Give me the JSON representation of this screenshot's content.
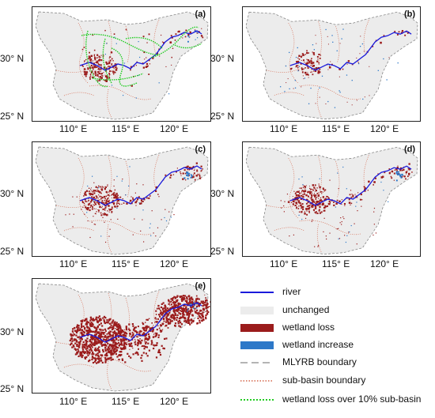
{
  "panels": [
    {
      "label": "(a)"
    },
    {
      "label": "(b)"
    },
    {
      "label": "(c)"
    },
    {
      "label": "(d)"
    },
    {
      "label": "(e)"
    }
  ],
  "axes": {
    "y_ticks": [
      "30° N",
      "25° N"
    ],
    "x_ticks": [
      "110° E",
      "115° E",
      "120° E"
    ]
  },
  "legend": {
    "items": [
      {
        "key": "river",
        "label": "river"
      },
      {
        "key": "unchanged",
        "label": "unchanged"
      },
      {
        "key": "loss",
        "label": "wetland loss"
      },
      {
        "key": "increase",
        "label": "wetland increase"
      },
      {
        "key": "mlyrb",
        "label": "MLYRB  boundary"
      },
      {
        "key": "subbasin",
        "label": "sub-basin boundary"
      },
      {
        "key": "loss10",
        "label": "wetland loss over 10% sub-basin"
      }
    ]
  },
  "colors": {
    "river": "#1a1adb",
    "unchanged": "#ececec",
    "wetland_loss": "#9b1c1c",
    "wetland_increase": "#2d78c8",
    "mlyrb_boundary": "#888888",
    "sub_basin_boundary": "#d4654a",
    "loss_over_10pct": "#22cc22"
  }
}
